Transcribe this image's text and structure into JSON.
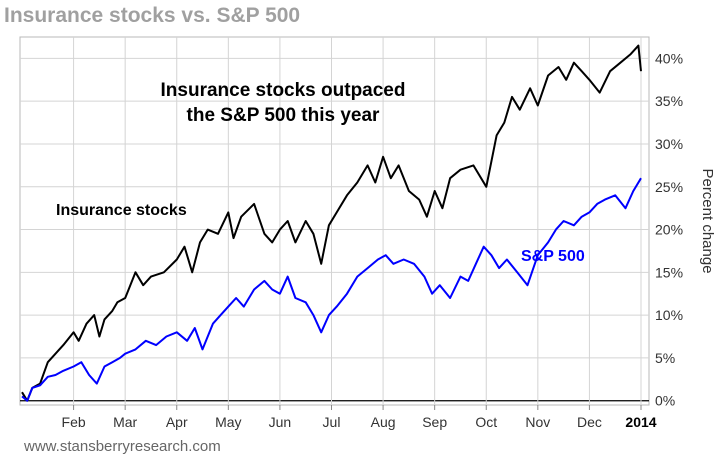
{
  "chart_data": {
    "type": "line",
    "title": "Insurance stocks vs. S&P 500",
    "annotation_line1": "Insurance stocks outpaced",
    "annotation_line2": "the S&P 500 this year",
    "ylabel": "Percent change",
    "xlabel": "",
    "source": "www.stansberryresearch.com",
    "ylim": [
      -0.5,
      42.5
    ],
    "yticks": [
      0,
      5,
      10,
      15,
      20,
      25,
      30,
      35,
      40
    ],
    "ytick_labels": [
      "0%",
      "5%",
      "10%",
      "15%",
      "20%",
      "25%",
      "30%",
      "35%",
      "40%"
    ],
    "xlim": [
      0,
      12
    ],
    "xticks": [
      {
        "pos": 1,
        "label": "Feb",
        "bold": false
      },
      {
        "pos": 2,
        "label": "Mar",
        "bold": false
      },
      {
        "pos": 3,
        "label": "Apr",
        "bold": false
      },
      {
        "pos": 4,
        "label": "May",
        "bold": false
      },
      {
        "pos": 5,
        "label": "Jun",
        "bold": false
      },
      {
        "pos": 6,
        "label": "Jul",
        "bold": false
      },
      {
        "pos": 7,
        "label": "Aug",
        "bold": false
      },
      {
        "pos": 8,
        "label": "Sep",
        "bold": false
      },
      {
        "pos": 9,
        "label": "Oct",
        "bold": false
      },
      {
        "pos": 10,
        "label": "Nov",
        "bold": false
      },
      {
        "pos": 11,
        "label": "Dec",
        "bold": false
      },
      {
        "pos": 12,
        "label": "2014",
        "bold": true
      }
    ],
    "grid": true,
    "series": [
      {
        "name": "Insurance stocks",
        "color": "#000000",
        "x": [
          0,
          0.1,
          0.2,
          0.35,
          0.5,
          0.65,
          0.8,
          1.0,
          1.1,
          1.25,
          1.4,
          1.5,
          1.6,
          1.75,
          1.85,
          2.0,
          2.2,
          2.35,
          2.5,
          2.75,
          3.0,
          3.15,
          3.3,
          3.45,
          3.6,
          3.8,
          4.0,
          4.1,
          4.25,
          4.5,
          4.7,
          4.85,
          5.0,
          5.15,
          5.3,
          5.5,
          5.65,
          5.8,
          5.95,
          6.1,
          6.3,
          6.5,
          6.7,
          6.85,
          7.0,
          7.15,
          7.3,
          7.5,
          7.7,
          7.85,
          8.0,
          8.15,
          8.3,
          8.5,
          8.75,
          9.0,
          9.2,
          9.35,
          9.5,
          9.65,
          9.85,
          10.0,
          10.2,
          10.4,
          10.55,
          10.7,
          10.85,
          11.0,
          11.2,
          11.4,
          11.6,
          11.8,
          11.95,
          12.0
        ],
        "values": [
          1.0,
          0.0,
          1.5,
          2.0,
          4.5,
          5.5,
          6.5,
          8.0,
          7.0,
          9.0,
          10.0,
          7.5,
          9.5,
          10.5,
          11.5,
          12.0,
          15.0,
          13.5,
          14.5,
          15.0,
          16.5,
          18.0,
          15.0,
          18.5,
          20.0,
          19.5,
          22.0,
          19.0,
          21.5,
          23.0,
          19.5,
          18.5,
          20.0,
          21.0,
          18.5,
          21.0,
          19.5,
          16.0,
          20.5,
          22.0,
          24.0,
          25.5,
          27.5,
          25.5,
          28.5,
          26.0,
          27.5,
          24.5,
          23.5,
          21.5,
          24.5,
          22.5,
          26.0,
          27.0,
          27.5,
          25.0,
          31.0,
          32.5,
          35.5,
          34.0,
          36.5,
          34.5,
          38.0,
          39.0,
          37.5,
          39.5,
          38.5,
          37.5,
          36.0,
          38.5,
          39.5,
          40.5,
          41.5,
          38.5
        ]
      },
      {
        "name": "S&P 500",
        "color": "#0000ff",
        "x": [
          0,
          0.1,
          0.2,
          0.35,
          0.5,
          0.65,
          0.8,
          1.0,
          1.15,
          1.3,
          1.45,
          1.6,
          1.75,
          1.9,
          2.0,
          2.2,
          2.4,
          2.6,
          2.8,
          3.0,
          3.2,
          3.35,
          3.5,
          3.7,
          3.85,
          4.0,
          4.15,
          4.3,
          4.5,
          4.7,
          4.85,
          5.0,
          5.15,
          5.3,
          5.5,
          5.65,
          5.8,
          5.95,
          6.1,
          6.3,
          6.5,
          6.7,
          6.9,
          7.05,
          7.2,
          7.4,
          7.6,
          7.8,
          7.95,
          8.1,
          8.3,
          8.5,
          8.65,
          8.8,
          8.95,
          9.1,
          9.25,
          9.4,
          9.6,
          9.8,
          10.0,
          10.2,
          10.35,
          10.5,
          10.7,
          10.85,
          11.0,
          11.15,
          11.3,
          11.5,
          11.7,
          11.85,
          12.0
        ],
        "values": [
          0.5,
          0.0,
          1.5,
          1.8,
          2.8,
          3.0,
          3.5,
          4.0,
          4.5,
          3.0,
          2.0,
          4.0,
          4.5,
          5.0,
          5.5,
          6.0,
          7.0,
          6.5,
          7.5,
          8.0,
          7.0,
          8.5,
          6.0,
          9.0,
          10.0,
          11.0,
          12.0,
          11.0,
          13.0,
          14.0,
          13.0,
          12.5,
          14.5,
          12.0,
          11.5,
          10.0,
          8.0,
          10.0,
          11.0,
          12.5,
          14.5,
          15.5,
          16.5,
          17.0,
          16.0,
          16.5,
          16.0,
          14.5,
          12.5,
          13.5,
          12.0,
          14.5,
          14.0,
          16.0,
          18.0,
          17.0,
          15.5,
          16.5,
          15.0,
          13.5,
          17.0,
          18.5,
          20.0,
          21.0,
          20.5,
          21.5,
          22.0,
          23.0,
          23.5,
          24.0,
          22.5,
          24.5,
          26.0
        ]
      }
    ],
    "labels": {
      "insurance": "Insurance stocks",
      "sp500": "S&P 500"
    }
  }
}
